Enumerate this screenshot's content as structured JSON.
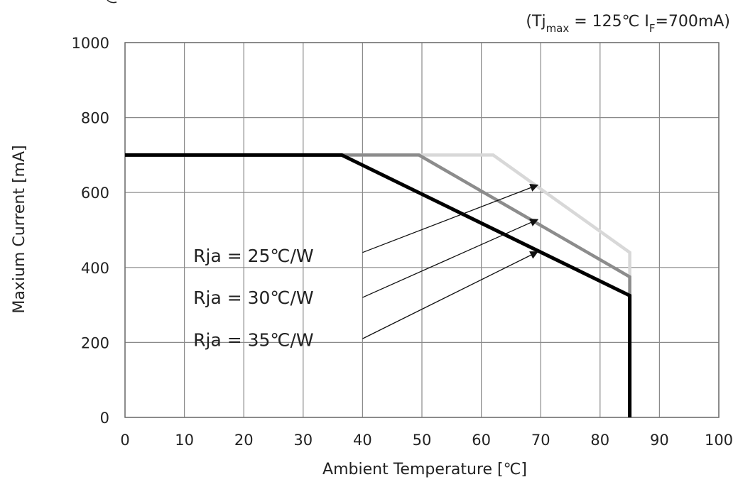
{
  "chart_data": {
    "type": "line",
    "title": "",
    "condition": {
      "prefix": "(Tj",
      "sub1": "max",
      "mid": " = 125℃ I",
      "sub2": "F",
      "suffix": "=700mA)"
    },
    "xlabel": "Ambient Temperature [℃]",
    "ylabel": "Maxium Current [mA]",
    "xlim": [
      0,
      100
    ],
    "ylim": [
      0,
      1000
    ],
    "xticks": [
      0,
      10,
      20,
      30,
      40,
      50,
      60,
      70,
      80,
      90,
      100
    ],
    "yticks": [
      0,
      200,
      400,
      600,
      800,
      1000
    ],
    "grid": true,
    "series": [
      {
        "name": "Rja = 25℃/W",
        "color": "#d8d8d8",
        "x": [
          0,
          62,
          85,
          85
        ],
        "y": [
          700,
          700,
          440,
          0
        ]
      },
      {
        "name": "Rja = 30℃/W",
        "color": "#8c8c8c",
        "x": [
          0,
          49.5,
          85,
          85
        ],
        "y": [
          700,
          700,
          375,
          0
        ]
      },
      {
        "name": "Rja = 35℃/W",
        "color": "#000000",
        "x": [
          0,
          36.5,
          85,
          85
        ],
        "y": [
          700,
          700,
          325,
          0
        ]
      }
    ],
    "annotations": [
      {
        "text": "Rja = 25℃/W",
        "text_xy": [
          11.5,
          415
        ],
        "arrow_from": [
          40,
          440
        ],
        "arrow_to": [
          69.5,
          620
        ]
      },
      {
        "text": "Rja = 30℃/W",
        "text_xy": [
          11.5,
          303
        ],
        "arrow_from": [
          40,
          320
        ],
        "arrow_to": [
          69.5,
          528
        ]
      },
      {
        "text": "Rja = 35℃/W",
        "text_xy": [
          11.5,
          190
        ],
        "arrow_from": [
          40,
          210
        ],
        "arrow_to": [
          69.5,
          442
        ]
      }
    ]
  }
}
